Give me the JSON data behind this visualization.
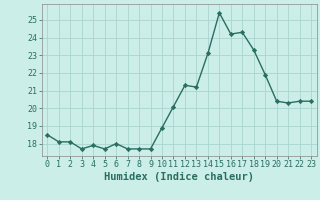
{
  "x": [
    0,
    1,
    2,
    3,
    4,
    5,
    6,
    7,
    8,
    9,
    10,
    11,
    12,
    13,
    14,
    15,
    16,
    17,
    18,
    19,
    20,
    21,
    22,
    23
  ],
  "y": [
    18.5,
    18.1,
    18.1,
    17.7,
    17.9,
    17.7,
    18.0,
    17.7,
    17.7,
    17.7,
    18.9,
    20.1,
    21.3,
    21.2,
    23.1,
    25.4,
    24.2,
    24.3,
    23.3,
    21.9,
    20.4,
    20.3,
    20.4,
    20.4
  ],
  "line_color": "#2a6e63",
  "marker": "D",
  "markersize": 2.2,
  "linewidth": 1.0,
  "xlabel": "Humidex (Indice chaleur)",
  "xlim": [
    -0.5,
    23.5
  ],
  "ylim": [
    17.3,
    25.9
  ],
  "yticks": [
    18,
    19,
    20,
    21,
    22,
    23,
    24,
    25
  ],
  "xticks": [
    0,
    1,
    2,
    3,
    4,
    5,
    6,
    7,
    8,
    9,
    10,
    11,
    12,
    13,
    14,
    15,
    16,
    17,
    18,
    19,
    20,
    21,
    22,
    23
  ],
  "background_color": "#cceee8",
  "grid_color": "#aad4ce",
  "tick_fontsize": 6.0,
  "xlabel_fontsize": 7.5
}
